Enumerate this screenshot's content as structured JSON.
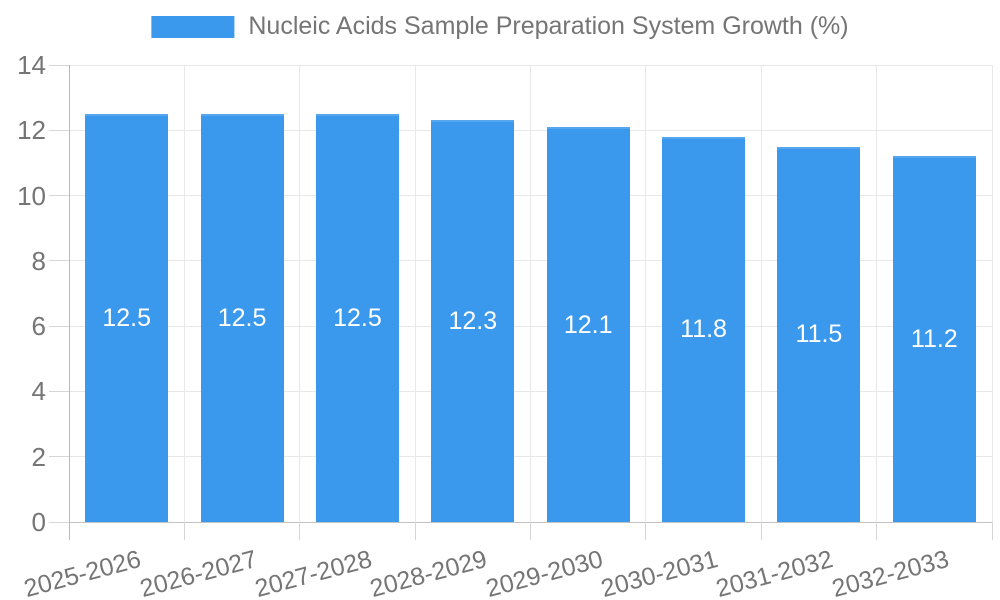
{
  "chart_data": {
    "type": "bar",
    "title": "Nucleic Acids Sample Preparation System Growth (%)",
    "categories": [
      "2025-2026",
      "2026-2027",
      "2027-2028",
      "2028-2029",
      "2029-2030",
      "2030-2031",
      "2031-2032",
      "2032-2033"
    ],
    "values": [
      12.5,
      12.5,
      12.5,
      12.3,
      12.1,
      11.8,
      11.5,
      11.2
    ],
    "bar_value_labels": [
      "12.5",
      "12.5",
      "12.5",
      "12.3",
      "12.1",
      "11.8",
      "11.5",
      "11.2"
    ],
    "xlabel": "",
    "ylabel": "",
    "ylim": [
      0,
      14
    ],
    "yticks": [
      0,
      2,
      4,
      6,
      8,
      10,
      12,
      14
    ],
    "ytick_labels": [
      "0",
      "2",
      "4",
      "6",
      "8",
      "10",
      "12",
      "14"
    ],
    "grid": true,
    "legend_position": "top",
    "x_label_rotation_deg": -15,
    "colors": {
      "bar_fill": "#3a99ec",
      "bar_edge": "#55a6ee",
      "bar_label_text": "#ffffff",
      "axis_text": "#757575",
      "grid_line": "#e8e8e8",
      "axis_line": "#b8b8b8",
      "zero_line": "#c2c2c2",
      "tick_line": "#d6d6d6",
      "background": "#ffffff"
    }
  }
}
